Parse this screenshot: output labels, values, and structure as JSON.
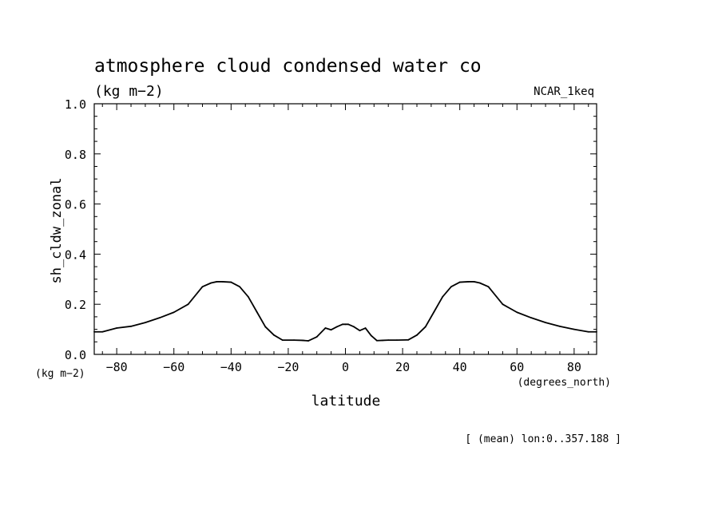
{
  "chart_data": {
    "type": "line",
    "title": "atmosphere cloud condensed water co",
    "subtitle": "(kg m−2)",
    "model_label": "NCAR_1keq",
    "xlabel": "latitude",
    "xunit": "(degrees_north)",
    "ylabel": "sh_cldw_zonal",
    "yunit": "(kg m−2)",
    "footer": "[ (mean) lon:0..357.188 ]",
    "xlim": [
      -87.86,
      87.86
    ],
    "ylim": [
      0,
      1.0
    ],
    "x_ticks": [
      -80,
      -60,
      -40,
      -20,
      0,
      20,
      40,
      60,
      80
    ],
    "x_tick_labels": [
      "−80",
      "−60",
      "−40",
      "−20",
      "0",
      "20",
      "40",
      "60",
      "80"
    ],
    "y_ticks": [
      0,
      0.2,
      0.4,
      0.6,
      0.8,
      1.0
    ],
    "y_tick_labels": [
      "0.0",
      "0.2",
      "0.4",
      "0.6",
      "0.8",
      "1.0"
    ],
    "grid": false,
    "line_color": "#000000",
    "series": [
      {
        "x": [
          -87.86,
          -85,
          -80,
          -75,
          -70,
          -65,
          -60,
          -55,
          -50,
          -47,
          -45,
          -43,
          -40,
          -37,
          -34,
          -31,
          -28,
          -25,
          -22,
          -18,
          -15,
          -13,
          -10,
          -7,
          -5,
          -3,
          -1,
          1,
          3,
          5,
          -0.001,
          7,
          9,
          11,
          13,
          15,
          18,
          22,
          25,
          28,
          31,
          34,
          37,
          40,
          43,
          45,
          47,
          50,
          55,
          60,
          65,
          70,
          75,
          80,
          85,
          87.86
        ],
        "y": [
          0.09,
          0.09,
          0.105,
          0.112,
          0.127,
          0.146,
          0.168,
          0.2,
          0.27,
          0.285,
          0.29,
          0.29,
          0.288,
          0.27,
          0.23,
          0.17,
          0.11,
          0.077,
          0.057,
          0.057,
          0.056,
          0.054,
          0.07,
          0.105,
          0.098,
          0.11,
          0.12,
          0.12,
          0.11,
          0.095,
          0.12,
          0.105,
          0.075,
          0.055,
          0.056,
          0.057,
          0.057,
          0.058,
          0.077,
          0.11,
          0.17,
          0.23,
          0.27,
          0.288,
          0.29,
          0.29,
          0.285,
          0.27,
          0.2,
          0.168,
          0.146,
          0.127,
          0.112,
          0.1,
          0.09,
          0.09
        ]
      }
    ]
  }
}
